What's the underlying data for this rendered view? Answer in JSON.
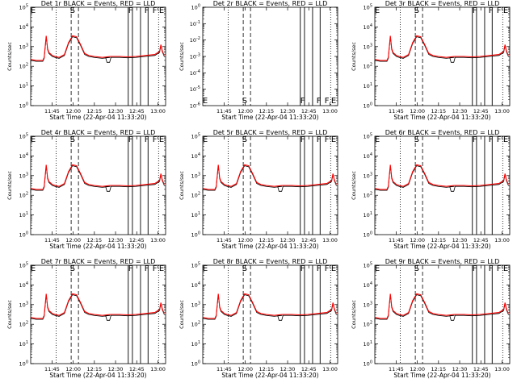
{
  "chart_data": [
    {
      "id": "1",
      "type": "line",
      "title": "Det 1r BLACK = Events, RED = LLD",
      "ylabel": "Counts/sec",
      "xlabel": "Start Time (22-Apr-04 11:33:20)",
      "xticks": [
        "11:45",
        "12:00",
        "12:15",
        "12:30",
        "12:45",
        "13:00"
      ],
      "yticks": [
        "10^0",
        "10^1",
        "10^2",
        "10^3",
        "10^4",
        "10^5"
      ],
      "ylim": [
        1,
        100000
      ],
      "yscale": "log",
      "markers": [
        "E",
        "S",
        "F",
        "F",
        "F",
        "E"
      ],
      "series": [
        {
          "name": "Events",
          "color": "#000000"
        },
        {
          "name": "LLD",
          "color": "#ff0000"
        }
      ],
      "has_data": true
    },
    {
      "id": "2",
      "type": "line",
      "title": "Det 2r BLACK = Events, RED = LLD",
      "ylabel": "Counts/sec",
      "xlabel": "Start Time (22-Apr-04 11:33:20)",
      "xticks": [
        "11:45",
        "12:00",
        "12:15",
        "12:30",
        "12:45",
        "13:00"
      ],
      "yticks": [
        "10^-6",
        "10^-5",
        "10^-4",
        "10^-3",
        "10^-2",
        "10^-1",
        "10^0"
      ],
      "ylim": [
        1e-06,
        1
      ],
      "yscale": "log",
      "markers": [
        "E",
        "S",
        "F",
        "F",
        "F",
        "E"
      ],
      "series": [],
      "has_data": false
    },
    {
      "id": "3",
      "type": "line",
      "title": "Det 3r BLACK = Events, RED = LLD",
      "ylabel": "Counts/sec",
      "xlabel": "Start Time (22-Apr-04 11:33:20)",
      "xticks": [
        "11:45",
        "12:00",
        "12:15",
        "12:30",
        "12:45",
        "13:00"
      ],
      "yticks": [
        "10^0",
        "10^1",
        "10^2",
        "10^3",
        "10^4",
        "10^5"
      ],
      "ylim": [
        1,
        100000
      ],
      "yscale": "log",
      "markers": [
        "E",
        "S",
        "F",
        "F",
        "F",
        "E"
      ],
      "series": [
        {
          "name": "Events",
          "color": "#000000"
        },
        {
          "name": "LLD",
          "color": "#ff0000"
        }
      ],
      "has_data": true
    },
    {
      "id": "4",
      "type": "line",
      "title": "Det 4r BLACK = Events, RED = LLD",
      "ylabel": "Counts/sec",
      "xlabel": "Start Time (22-Apr-04 11:33:20)",
      "xticks": [
        "11:45",
        "12:00",
        "12:15",
        "12:30",
        "12:45",
        "13:00"
      ],
      "yticks": [
        "10^0",
        "10^1",
        "10^2",
        "10^3",
        "10^4",
        "10^5"
      ],
      "ylim": [
        1,
        100000
      ],
      "yscale": "log",
      "markers": [
        "E",
        "S",
        "F",
        "F",
        "F",
        "E"
      ],
      "series": [
        {
          "name": "Events",
          "color": "#000000"
        },
        {
          "name": "LLD",
          "color": "#ff0000"
        }
      ],
      "has_data": true
    },
    {
      "id": "5",
      "type": "line",
      "title": "Det 5r BLACK = Events, RED = LLD",
      "ylabel": "Counts/sec",
      "xlabel": "Start Time (22-Apr-04 11:33:20)",
      "xticks": [
        "11:45",
        "12:00",
        "12:15",
        "12:30",
        "12:45",
        "13:00"
      ],
      "yticks": [
        "10^0",
        "10^1",
        "10^2",
        "10^3",
        "10^4",
        "10^5"
      ],
      "ylim": [
        1,
        100000
      ],
      "yscale": "log",
      "markers": [
        "E",
        "S",
        "F",
        "F",
        "F",
        "E"
      ],
      "series": [
        {
          "name": "Events",
          "color": "#000000"
        },
        {
          "name": "LLD",
          "color": "#ff0000"
        }
      ],
      "has_data": true
    },
    {
      "id": "6",
      "type": "line",
      "title": "Det 6r BLACK = Events, RED = LLD",
      "ylabel": "Counts/sec",
      "xlabel": "Start Time (22-Apr-04 11:33:20)",
      "xticks": [
        "11:45",
        "12:00",
        "12:15",
        "12:30",
        "12:45",
        "13:00"
      ],
      "yticks": [
        "10^0",
        "10^1",
        "10^2",
        "10^3",
        "10^4",
        "10^5"
      ],
      "ylim": [
        1,
        100000
      ],
      "yscale": "log",
      "markers": [
        "E",
        "S",
        "F",
        "F",
        "F",
        "E"
      ],
      "series": [
        {
          "name": "Events",
          "color": "#000000"
        },
        {
          "name": "LLD",
          "color": "#ff0000"
        }
      ],
      "has_data": true
    },
    {
      "id": "7",
      "type": "line",
      "title": "Det 7r BLACK = Events, RED = LLD",
      "ylabel": "Counts/sec",
      "xlabel": "Start Time (22-Apr-04 11:33:20)",
      "xticks": [
        "11:45",
        "12:00",
        "12:15",
        "12:30",
        "12:45",
        "13:00"
      ],
      "yticks": [
        "10^0",
        "10^1",
        "10^2",
        "10^3",
        "10^4",
        "10^5"
      ],
      "ylim": [
        1,
        100000
      ],
      "yscale": "log",
      "markers": [
        "E",
        "S",
        "F",
        "F",
        "F",
        "E"
      ],
      "series": [
        {
          "name": "Events",
          "color": "#000000"
        },
        {
          "name": "LLD",
          "color": "#ff0000"
        }
      ],
      "has_data": true
    },
    {
      "id": "8",
      "type": "line",
      "title": "Det 8r BLACK = Events, RED = LLD",
      "ylabel": "Counts/sec",
      "xlabel": "Start Time (22-Apr-04 11:33:20)",
      "xticks": [
        "11:45",
        "12:00",
        "12:15",
        "12:30",
        "12:45",
        "13:00"
      ],
      "yticks": [
        "10^0",
        "10^1",
        "10^2",
        "10^3",
        "10^4",
        "10^5"
      ],
      "ylim": [
        1,
        100000
      ],
      "yscale": "log",
      "markers": [
        "E",
        "S",
        "F",
        "F",
        "F",
        "E"
      ],
      "series": [
        {
          "name": "Events",
          "color": "#000000"
        },
        {
          "name": "LLD",
          "color": "#ff0000"
        }
      ],
      "has_data": true
    },
    {
      "id": "9",
      "type": "line",
      "title": "Det 9r BLACK = Events, RED = LLD",
      "ylabel": "Counts/sec",
      "xlabel": "Start Time (22-Apr-04 11:33:20)",
      "xticks": [
        "11:45",
        "12:00",
        "12:15",
        "12:30",
        "12:45",
        "13:00"
      ],
      "yticks": [
        "10^0",
        "10^1",
        "10^2",
        "10^3",
        "10^4",
        "10^5"
      ],
      "ylim": [
        1,
        100000
      ],
      "yscale": "log",
      "markers": [
        "E",
        "S",
        "F",
        "F",
        "F",
        "E"
      ],
      "series": [
        {
          "name": "Events",
          "color": "#000000"
        },
        {
          "name": "LLD",
          "color": "#ff0000"
        }
      ],
      "has_data": true
    }
  ]
}
